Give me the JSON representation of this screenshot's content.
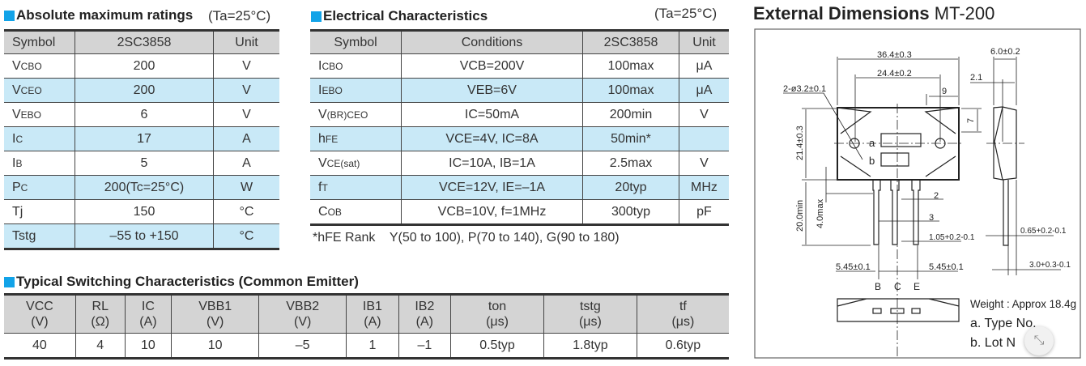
{
  "abs": {
    "title": "Absolute maximum ratings",
    "cond": "(Ta=25°C)",
    "headers": [
      "Symbol",
      "2SC3858",
      "Unit"
    ],
    "rows": [
      {
        "m": "V",
        "s": "CBO",
        "v": "200",
        "u": "V"
      },
      {
        "m": "V",
        "s": "CEO",
        "v": "200",
        "u": "V"
      },
      {
        "m": "V",
        "s": "EBO",
        "v": "6",
        "u": "V"
      },
      {
        "m": "I",
        "s": "C",
        "v": "17",
        "u": "A"
      },
      {
        "m": "I",
        "s": "B",
        "v": "5",
        "u": "A"
      },
      {
        "m": "P",
        "s": "C",
        "v": "200(Tc=25°C)",
        "u": "W"
      },
      {
        "m": "Tj",
        "s": "",
        "v": "150",
        "u": "°C"
      },
      {
        "m": "Tstg",
        "s": "",
        "v": "–55 to +150",
        "u": "°C"
      }
    ]
  },
  "elec": {
    "title": "Electrical Characteristics",
    "cond": "(Ta=25°C)",
    "headers": [
      "Symbol",
      "Conditions",
      "2SC3858",
      "Unit"
    ],
    "rows": [
      {
        "m": "I",
        "s": "CBO",
        "c": "VCB=200V",
        "v": "100max",
        "u": "μA"
      },
      {
        "m": "I",
        "s": "EBO",
        "c": "VEB=6V",
        "v": "100max",
        "u": "μA"
      },
      {
        "m": "V",
        "s": "(BR)CEO",
        "c": "IC=50mA",
        "v": "200min",
        "u": "V"
      },
      {
        "m": "h",
        "s": "FE",
        "c": "VCE=4V, IC=8A",
        "v": "50min*",
        "u": ""
      },
      {
        "m": "V",
        "s": "CE(sat)",
        "c": "IC=10A, IB=1A",
        "v": "2.5max",
        "u": "V"
      },
      {
        "m": "f",
        "s": "T",
        "c": "VCE=12V, IE=–1A",
        "v": "20typ",
        "u": "MHz"
      },
      {
        "m": "C",
        "s": "OB",
        "c": "VCB=10V, f=1MHz",
        "v": "300typ",
        "u": "pF"
      }
    ],
    "note": "*hFE Rank    Y(50 to 100), P(70 to 140), G(90 to 180)"
  },
  "sw": {
    "title": "Typical Switching Characteristics (Common Emitter)",
    "headers": [
      [
        "VCC",
        "(V)"
      ],
      [
        "RL",
        "(Ω)"
      ],
      [
        "IC",
        "(A)"
      ],
      [
        "VBB1",
        "(V)"
      ],
      [
        "VBB2",
        "(V)"
      ],
      [
        "IB1",
        "(A)"
      ],
      [
        "IB2",
        "(A)"
      ],
      [
        "ton",
        "(μs)"
      ],
      [
        "tstg",
        "(μs)"
      ],
      [
        "tf",
        "(μs)"
      ]
    ],
    "values": [
      "40",
      "4",
      "10",
      "10",
      "–5",
      "1",
      "–1",
      "0.5typ",
      "1.8typ",
      "0.6typ"
    ]
  },
  "ext": {
    "title": "External Dimensions",
    "pkg": "MT-200",
    "dims": {
      "w": "36.4±0.3",
      "hole_pitch": "24.4±0.2",
      "holes": "2-ø3.2±0.1",
      "d9": "9",
      "t": "6.0±0.2",
      "d21": "2.1",
      "d7": "7",
      "h": "21.4±0.3",
      "lead": "20.0min",
      "d4": "4.0max",
      "d2": "2",
      "d3": "3",
      "lw": "1.05+0.2-0.1",
      "lt": "0.65+0.2-0.1",
      "pitchL": "5.45±0.1",
      "pitchR": "5.45±0.1",
      "d30": "3.0+0.3-0.1"
    },
    "mark_a": "a",
    "mark_b": "b",
    "pins": [
      "B",
      "C",
      "E"
    ],
    "weight": "Weight : Approx 18.4g",
    "legend_a": "a. Type No.",
    "legend_b": "b. Lot N"
  },
  "fab_icon": "collapse-icon"
}
